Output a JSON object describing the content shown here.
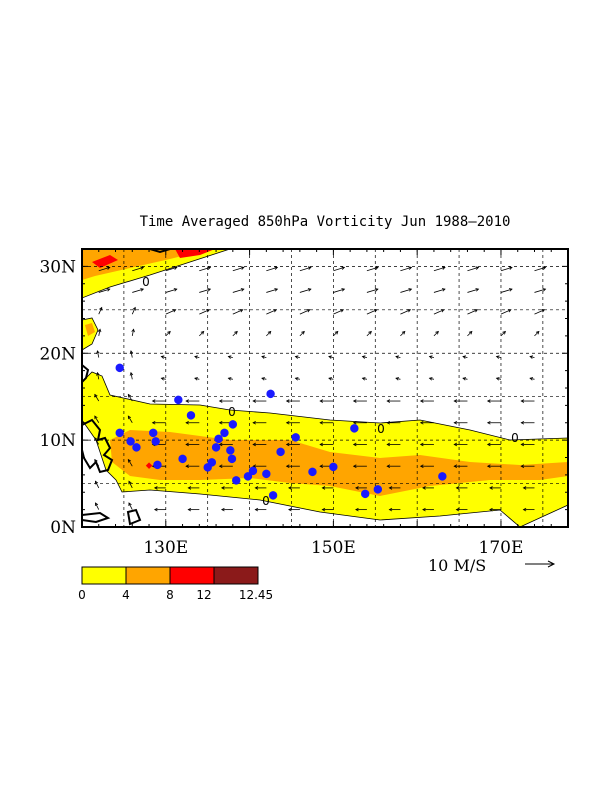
{
  "title": "Time Averaged 850hPa Vorticity  Jun 1988–2010",
  "lon_labels": [
    {
      "lon": 130,
      "label": "130E"
    },
    {
      "lon": 150,
      "label": "150E"
    },
    {
      "lon": 170,
      "label": "170E"
    }
  ],
  "lat_labels": [
    {
      "lat": 0,
      "label": "0N"
    },
    {
      "lat": 10,
      "label": "10N"
    },
    {
      "lat": 20,
      "label": "20N"
    },
    {
      "lat": 30,
      "label": "30N"
    }
  ],
  "lon_range": [
    120,
    178
  ],
  "lat_range": [
    0,
    32
  ],
  "vector_scale_label": "10 M/S",
  "colorbar": {
    "labels": [
      "0",
      "4",
      "8",
      "12",
      "12.45"
    ],
    "colors": [
      "#ffff00",
      "#ffa500",
      "#ff0000",
      "#8b1a1a"
    ]
  },
  "contour_zero_label": "0",
  "cyclone_points_blue": [
    [
      124.5,
      18.5
    ],
    [
      131.5,
      14.8
    ],
    [
      133,
      13
    ],
    [
      142.5,
      15.5
    ],
    [
      138,
      12
    ],
    [
      137,
      11
    ],
    [
      136.3,
      10.3
    ],
    [
      124.5,
      11
    ],
    [
      128.5,
      11
    ],
    [
      128.8,
      10
    ],
    [
      125.8,
      10
    ],
    [
      126.5,
      9.3
    ],
    [
      129,
      7.3
    ],
    [
      132,
      8
    ],
    [
      135,
      7
    ],
    [
      135.5,
      7.6
    ],
    [
      136,
      9.3
    ],
    [
      137.7,
      9
    ],
    [
      137.9,
      8
    ],
    [
      138.4,
      5.5
    ],
    [
      139.8,
      6
    ],
    [
      140.4,
      6.6
    ],
    [
      142,
      6.3
    ],
    [
      142.8,
      3.8
    ],
    [
      143.7,
      8.8
    ],
    [
      145.5,
      10.5
    ],
    [
      147.5,
      6.5
    ],
    [
      150,
      7.1
    ],
    [
      152.5,
      11.5
    ],
    [
      153.8,
      4
    ],
    [
      155.3,
      4.5
    ],
    [
      163,
      6
    ]
  ],
  "cyclone_points_red": [
    [
      128,
      7.2
    ]
  ]
}
